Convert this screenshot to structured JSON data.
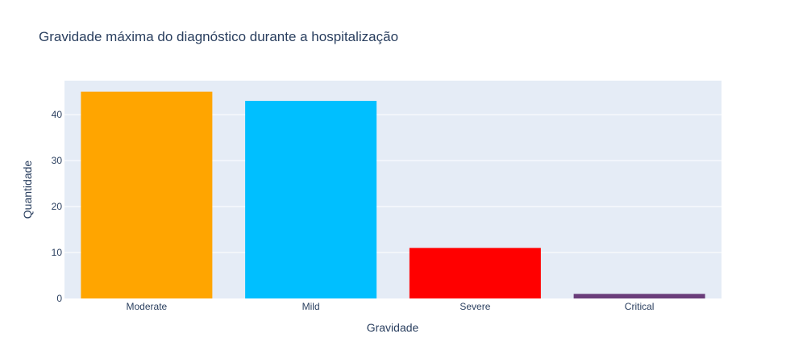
{
  "chart_data": {
    "type": "bar",
    "title": "Gravidade máxima do diagnóstico durante a hospitalização",
    "xlabel": "Gravidade",
    "ylabel": "Quantidade",
    "categories": [
      "Moderate",
      "Mild",
      "Severe",
      "Critical"
    ],
    "values": [
      45,
      43,
      11,
      1
    ],
    "colors": [
      "#FFA500",
      "#00BFFF",
      "#FF0000",
      "#6A3D7A"
    ],
    "ylim": [
      0,
      47.4
    ],
    "yticks": [
      0,
      10,
      20,
      30,
      40
    ],
    "grid": true,
    "plot_background": "#E5ECF6",
    "legend": "none"
  }
}
